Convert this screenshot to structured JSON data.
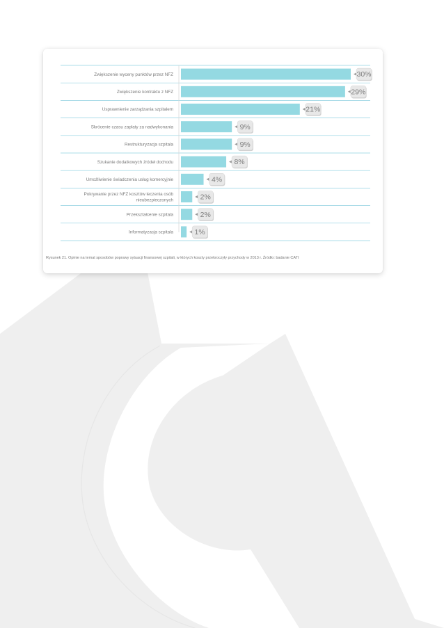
{
  "colors": {
    "bar": "#94d9e2",
    "divider": "#8fd0e0",
    "label_text": "#7a7a7a",
    "badge_fill": "#e8e8e8",
    "badge_text": "#7d7d7d",
    "background_logo": "#efefef"
  },
  "chart_data": {
    "type": "bar",
    "orientation": "horizontal",
    "categories": [
      "Zwiększenie wyceny punktów przez NFZ",
      "Zwiększenie kontraktu z NFZ",
      "Usprawnienie zarządzania szpitalem",
      "Skrócenie czasu zapłaty za nadwykonania",
      "Restrukturyzacja szpitala",
      "Szukanie dodatkowych źródeł dochodu",
      "Umożliwienie świadczenia usług komercyjnie",
      [
        "Pokrywanie przez NFZ kosztów leczenia osób",
        "nieubezpieczonych"
      ],
      "Przekształcenie szpitala",
      "Informatyzacja szpitala"
    ],
    "values": [
      30,
      29,
      21,
      9,
      9,
      8,
      4,
      2,
      2,
      1
    ],
    "data_labels": [
      "30%",
      "29%",
      "21%",
      "9%",
      "9%",
      "8%",
      "4%",
      "2%",
      "2%",
      "1%"
    ],
    "xlim": [
      0,
      30
    ],
    "legend": "none",
    "grid": false
  },
  "caption": "Rysunek 21. Opinie na temat sposobów poprawy sytuacji finansowej szpitali, w których koszty przekroczyły przychody w 2013 r. Źródło: badanie CATI"
}
